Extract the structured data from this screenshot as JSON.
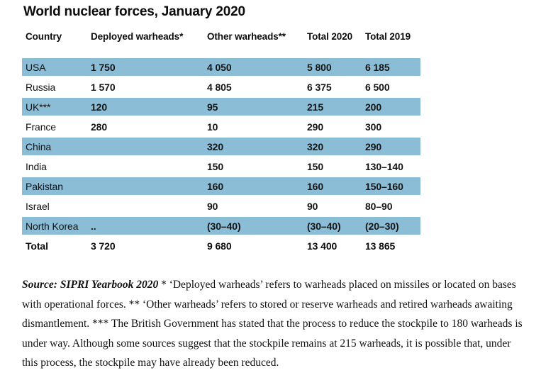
{
  "title": "World nuclear forces, January 2020",
  "colors": {
    "row_highlight": "#8cbdd6",
    "background": "#ffffff",
    "text": "#111111"
  },
  "chart_data": {
    "type": "table",
    "title": "World nuclear forces, January 2020",
    "columns": [
      "Country",
      "Deployed warheads*",
      "Other warheads**",
      "Total 2020",
      "Total 2019"
    ],
    "rows": [
      {
        "country": "USA",
        "deployed": "1 750",
        "other": "4 050",
        "total_2020": "5 800",
        "total_2019": "6 185",
        "shaded": true
      },
      {
        "country": "Russia",
        "deployed": "1 570",
        "other": "4 805",
        "total_2020": "6 375",
        "total_2019": "6 500",
        "shaded": false
      },
      {
        "country": "UK***",
        "deployed": "120",
        "other": "95",
        "total_2020": "215",
        "total_2019": "200",
        "shaded": true
      },
      {
        "country": "France",
        "deployed": "280",
        "other": "10",
        "total_2020": "290",
        "total_2019": "300",
        "shaded": false
      },
      {
        "country": "China",
        "deployed": "",
        "other": "320",
        "total_2020": "320",
        "total_2019": "290",
        "shaded": true
      },
      {
        "country": "India",
        "deployed": "",
        "other": "150",
        "total_2020": "150",
        "total_2019": "130–140",
        "shaded": false
      },
      {
        "country": "Pakistan",
        "deployed": "",
        "other": "160",
        "total_2020": "160",
        "total_2019": "150–160",
        "shaded": true
      },
      {
        "country": "Israel",
        "deployed": "",
        "other": "90",
        "total_2020": "90",
        "total_2019": "80–90",
        "shaded": false
      },
      {
        "country": "North Korea",
        "deployed": "..",
        "other": "(30–40)",
        "total_2020": "(30–40)",
        "total_2019": "(20–30)",
        "shaded": true
      }
    ],
    "total": {
      "country": "Total",
      "deployed": "3 720",
      "other": "9 680",
      "total_2020": "13 400",
      "total_2019": "13 865"
    }
  },
  "footnote": {
    "source_label": "Source: SIPRI Yearbook 2020",
    "body": "* ‘Deployed warheads’ refers to warheads placed on missiles or located on bases with operational forces. ** ‘Other warheads’ refers to stored or reserve warheads and retired warheads awaiting dismantlement. *** The British Government has stated that the process to reduce the stockpile to 180 warheads is under way. Although some sources suggest that the stockpile remains at 215 warheads, it is possible that, under this process, the stockpile may have already been reduced."
  }
}
